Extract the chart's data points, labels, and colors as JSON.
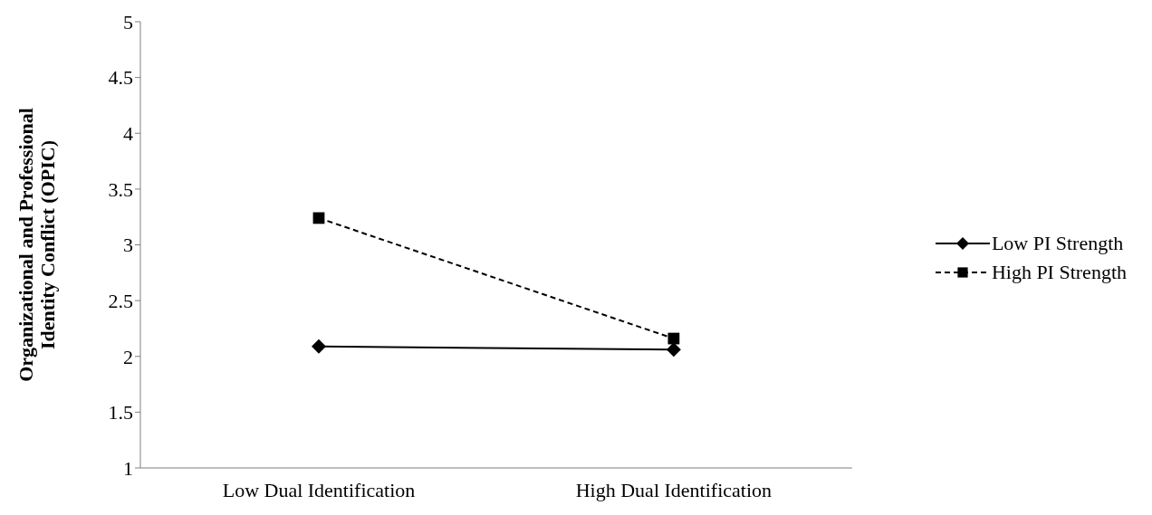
{
  "chart_data": {
    "type": "line",
    "ylabel": "Organizational and Professional Identity Conflict (OPIC)",
    "categories": [
      "Low Dual Identification",
      "High Dual Identification"
    ],
    "series": [
      {
        "name": "Low PI Strength",
        "color": "#000000",
        "values": [
          2.09,
          2.06
        ],
        "marker": "diamond",
        "line_style": "solid"
      },
      {
        "name": "High PI Strength",
        "color": "#000000",
        "values": [
          3.24,
          2.16
        ],
        "marker": "square",
        "line_style": "dashed"
      }
    ],
    "ylim": [
      1,
      5
    ],
    "yticks": [
      1,
      1.5,
      2,
      2.5,
      3,
      3.5,
      4,
      4.5,
      5
    ],
    "grid": false,
    "legend": "right"
  }
}
